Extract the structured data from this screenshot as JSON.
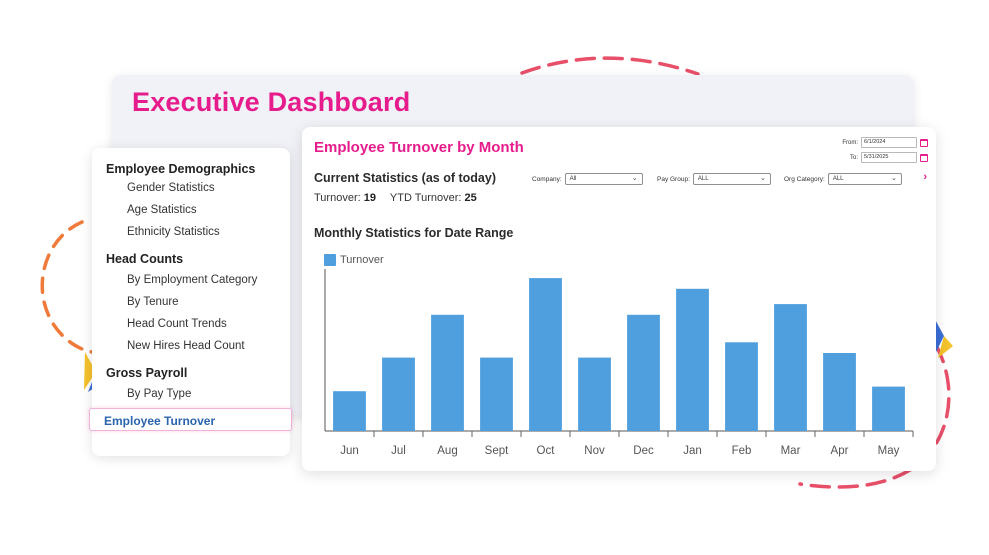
{
  "dashboard": {
    "title": "Executive Dashboard"
  },
  "sidebar": {
    "groups": [
      {
        "label": "Employee Demographics",
        "items": [
          "Gender Statistics",
          "Age Statistics",
          "Ethnicity Statistics"
        ]
      },
      {
        "label": "Head Counts",
        "items": [
          "By Employment Category",
          "By Tenure",
          "Head Count Trends",
          "New Hires Head Count"
        ]
      },
      {
        "label": "Gross Payroll",
        "items": [
          "By Pay Type"
        ]
      }
    ],
    "active_item": "Employee Turnover"
  },
  "report": {
    "title": "Employee Turnover by Month",
    "date_from": {
      "label": "From:",
      "value": "6/1/2024"
    },
    "date_to": {
      "label": "To:",
      "value": "5/31/2025"
    },
    "current_title": "Current Statistics (as of today)",
    "turnover_label": "Turnover:",
    "turnover_value": "19",
    "ytd_label": "YTD Turnover:",
    "ytd_value": "25",
    "filters": {
      "company": {
        "label": "Company:",
        "value": "All"
      },
      "pay_group": {
        "label": "Pay Group:",
        "value": "ALL"
      },
      "org_category": {
        "label": "Org Category:",
        "value": "ALL"
      }
    },
    "monthly_title": "Monthly Statistics for Date Range"
  },
  "colors": {
    "accent": "#e61c8c",
    "bar": "#4f9fdf",
    "active_link": "#2b63ad"
  },
  "chart_data": {
    "type": "bar",
    "categories": [
      "Jun",
      "Jul",
      "Aug",
      "Sept",
      "Oct",
      "Nov",
      "Dec",
      "Jan",
      "Feb",
      "Mar",
      "Apr",
      "May"
    ],
    "series": [
      {
        "name": "Turnover",
        "values": [
          2.6,
          4.8,
          7.6,
          4.8,
          10,
          4.8,
          7.6,
          9.3,
          5.8,
          8.3,
          5.1,
          2.9
        ]
      }
    ],
    "ylim": [
      0,
      10.2
    ],
    "grid": false,
    "legend": "top-left"
  }
}
